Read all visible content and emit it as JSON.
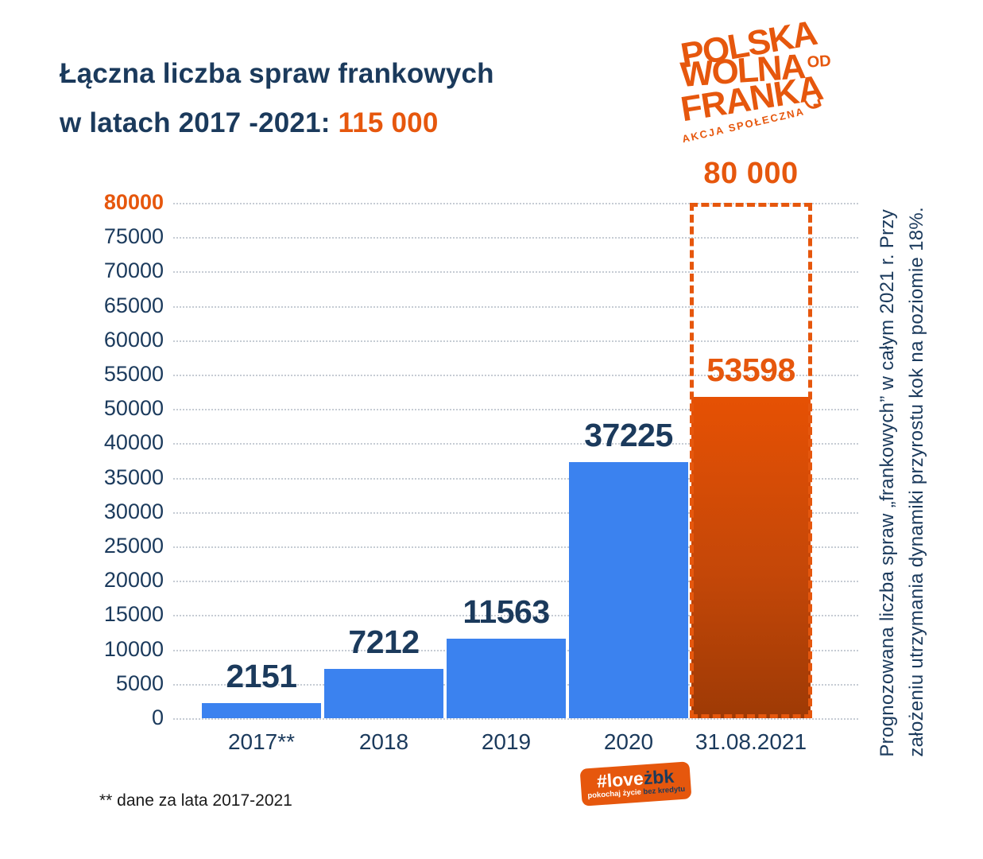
{
  "title": {
    "line1": "Łączna liczba spraw frankowych",
    "line2_prefix": "w latach 2017 -2021: ",
    "line2_highlight": "115 000"
  },
  "logo": {
    "line1": "POLSKA",
    "line2": "WOLNA",
    "line2_small": "OD",
    "line3": "FRANKA",
    "subtitle": "AKCJA SPOŁECZNA"
  },
  "chart_data": {
    "type": "bar",
    "title": "Łączna liczba spraw frankowych w latach 2017 -2021: 115 000",
    "categories": [
      "2017**",
      "2018",
      "2019",
      "2020",
      "31.08.2021"
    ],
    "values": [
      2151,
      7212,
      11563,
      37225,
      53598
    ],
    "value_labels": [
      "2151",
      "7212",
      "11563",
      "37225",
      "53598"
    ],
    "projection": {
      "category": "31.08.2021",
      "value": 80000,
      "label": "80 000"
    },
    "y_tick_labels": [
      "80000",
      "75000",
      "70000",
      "65000",
      "60000",
      "55000",
      "50000",
      "40000",
      "35000",
      "30000",
      "25000",
      "20000",
      "15000",
      "10000",
      "5000",
      "0"
    ],
    "ylim": [
      0,
      80000
    ],
    "grid": "horizontal-dotted",
    "legend": "none",
    "bar_color": "#3b82ef",
    "projection_bar_gradient": [
      "#e65104",
      "#9e3a05"
    ],
    "highlight_color": "#e6570d",
    "axis_label_color": "#1b3a5c"
  },
  "side_note": {
    "line1": "Prognozowana liczba spraw „frankowych” w całym 2021 r. Przy",
    "line2": "założeniu utrzymania dynamiki przyrostu kok na poziomie 18%."
  },
  "footnote": "** dane za lata 2017-2021",
  "badge": {
    "hash_love": "#love",
    "zbk": "żbk",
    "tagline_white": "pokochaj życie ",
    "tagline_navy": "bez kredytu"
  },
  "colors": {
    "navy": "#1b3a5c",
    "orange": "#e6570d",
    "blue": "#3b82ef",
    "grid": "#c6ccd4"
  }
}
